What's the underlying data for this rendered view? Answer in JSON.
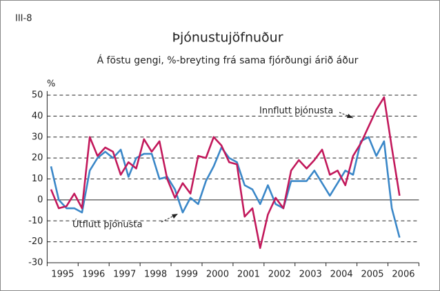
{
  "chart_data": {
    "type": "line",
    "figure_label": "III-8",
    "title": "Þjónustujöfnuður",
    "subtitle": "Á föstu gengi, %-breyting frá sama fjórðungi árið áður",
    "y_label": "%",
    "categories": [
      "1995",
      null,
      null,
      null,
      "1996",
      null,
      null,
      null,
      "1997",
      null,
      null,
      null,
      "1998",
      null,
      null,
      null,
      "1999",
      null,
      null,
      null,
      "2000",
      null,
      null,
      null,
      "2001",
      null,
      null,
      null,
      "2002",
      null,
      null,
      null,
      "2003",
      null,
      null,
      null,
      "2004",
      null,
      null,
      null,
      "2005",
      null,
      null,
      null,
      "2006",
      null
    ],
    "series": [
      {
        "name": "Innflutt þjónusta",
        "color": "#c2185b",
        "values": [
          5,
          -4,
          -3,
          3,
          -4,
          30,
          21,
          25,
          23,
          12,
          18,
          15,
          29,
          23,
          28,
          10,
          1,
          8,
          3,
          21,
          20,
          30,
          26,
          18,
          17,
          -8,
          -4,
          -23,
          -7,
          1,
          -4,
          14,
          19,
          15,
          19,
          24,
          12,
          14,
          7,
          21,
          27,
          35,
          43,
          49,
          25,
          2
        ]
      },
      {
        "name": "Útflutt þjónusta",
        "color": "#3a87c8",
        "values": [
          16,
          0,
          -4,
          -4,
          -6,
          14,
          20,
          23,
          20,
          24,
          11,
          20,
          22,
          22,
          10,
          11,
          5,
          -6,
          1,
          -2,
          9,
          16,
          25,
          20,
          18,
          7,
          5,
          -2,
          7,
          -2,
          -4,
          9,
          9,
          9,
          14,
          8,
          2,
          8,
          14,
          12,
          28,
          30,
          21,
          28,
          -4,
          -18
        ]
      }
    ],
    "ylim": [
      -30,
      50
    ],
    "yticks": [
      -30,
      -20,
      -10,
      0,
      10,
      20,
      30,
      40,
      50
    ],
    "grid": true
  }
}
